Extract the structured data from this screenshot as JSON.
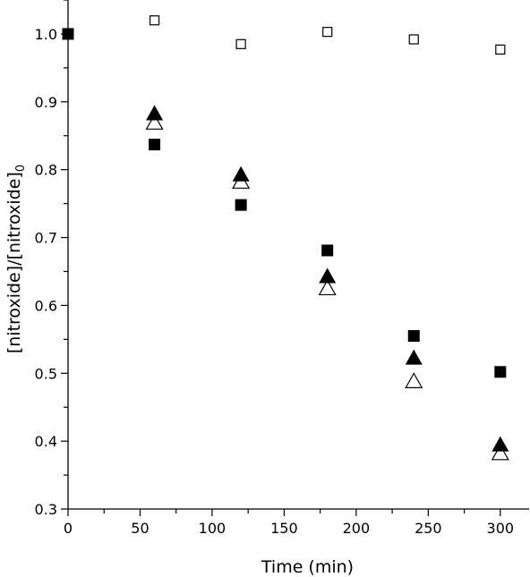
{
  "chart_data": {
    "type": "scatter",
    "title": "",
    "xlabel": "Time (min)",
    "ylabel": "[nitroxide]/[nitroxide]",
    "ylabel_subscript": "0",
    "xlim": [
      0,
      320
    ],
    "ylim": [
      0.3,
      1.05
    ],
    "x_ticks": [
      0,
      50,
      100,
      150,
      200,
      250,
      300
    ],
    "x_tick_labels": [
      "0",
      "50",
      "100",
      "150",
      "200",
      "250",
      "300"
    ],
    "y_ticks": [
      0.3,
      0.4,
      0.5,
      0.6,
      0.7,
      0.8,
      0.9,
      1.0
    ],
    "y_tick_labels": [
      "0.3",
      "0.4",
      "0.5",
      "0.6",
      "0.7",
      "0.8",
      "0.9",
      "1.0"
    ],
    "grid": false,
    "legend": "none",
    "series": [
      {
        "marker": "square-open",
        "color": "#000000",
        "points": [
          [
            60,
            1.02
          ],
          [
            120,
            0.985
          ],
          [
            180,
            1.003
          ],
          [
            240,
            0.992
          ],
          [
            300,
            0.977
          ]
        ]
      },
      {
        "marker": "square-filled",
        "color": "#000000",
        "points": [
          [
            0,
            1.0
          ],
          [
            60,
            0.837
          ],
          [
            120,
            0.748
          ],
          [
            180,
            0.681
          ],
          [
            240,
            0.555
          ],
          [
            300,
            0.502
          ]
        ]
      },
      {
        "marker": "triangle-filled",
        "color": "#000000",
        "points": [
          [
            60,
            0.882
          ],
          [
            120,
            0.792
          ],
          [
            180,
            0.642
          ],
          [
            240,
            0.522
          ],
          [
            300,
            0.394
          ]
        ]
      },
      {
        "marker": "triangle-open",
        "color": "#000000",
        "points": [
          [
            60,
            0.869
          ],
          [
            120,
            0.782
          ],
          [
            180,
            0.625
          ],
          [
            240,
            0.488
          ],
          [
            300,
            0.382
          ]
        ]
      }
    ]
  }
}
